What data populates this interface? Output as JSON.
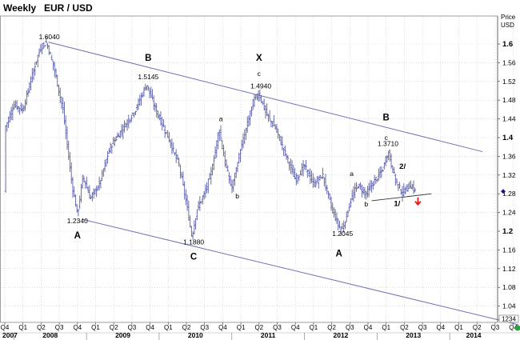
{
  "header": {
    "period": "Weekly",
    "symbol": "EUR / USD"
  },
  "axis": {
    "price_label_1": "Price",
    "price_label_2": "USD",
    "last_value_box": "1234"
  },
  "colors": {
    "price_bars": "#5b5fa8",
    "channel": "#6f72b5",
    "grid": "#c9c9c9",
    "down_arrow": "#dd1a1a",
    "marker_diamond": "#1a1a8f",
    "marker_dot": "#2aa13a"
  },
  "chart_data": {
    "type": "bar",
    "subtype": "ohlc_weekly",
    "series": [
      {
        "values": []
      }
    ],
    "y_axis_ticks": [
      "1.6",
      "1.56",
      "1.52",
      "1.48",
      "1.44",
      "1.4",
      "1.36",
      "1.32",
      "1.28",
      "1.24",
      "1.2",
      "1.16",
      "1.12",
      "1.08",
      "1.04"
    ],
    "y_axis_bold": [
      "1.6",
      "1.4",
      "1.2"
    ],
    "ylim": [
      1.0,
      1.63
    ],
    "grid": true,
    "quarter_ticks": [
      "Q4",
      "Q1",
      "Q2",
      "Q3",
      "Q4",
      "Q1",
      "Q2",
      "Q3",
      "Q4",
      "Q1",
      "Q2",
      "Q3",
      "Q4",
      "Q1",
      "Q2",
      "Q3",
      "Q4",
      "Q1",
      "Q2",
      "Q3",
      "Q4",
      "Q1",
      "Q2",
      "Q3",
      "Q4",
      "Q1",
      "Q2",
      "Q3",
      "Q4"
    ],
    "years": [
      "2007",
      "2008",
      "2009",
      "2010",
      "2011",
      "2012",
      "2013",
      "2014"
    ],
    "price_path": [
      {
        "t": 0.0,
        "p": 1.42
      },
      {
        "t": 0.5,
        "p": 1.47
      },
      {
        "t": 1.0,
        "p": 1.46
      },
      {
        "t": 1.7,
        "p": 1.56
      },
      {
        "t": 2.0,
        "p": 1.595
      },
      {
        "t": 2.3,
        "p": 1.604
      },
      {
        "t": 2.7,
        "p": 1.55
      },
      {
        "t": 3.2,
        "p": 1.46
      },
      {
        "t": 3.7,
        "p": 1.3
      },
      {
        "t": 4.0,
        "p": 1.234
      },
      {
        "t": 4.3,
        "p": 1.32
      },
      {
        "t": 4.7,
        "p": 1.27
      },
      {
        "t": 5.2,
        "p": 1.3
      },
      {
        "t": 5.8,
        "p": 1.38
      },
      {
        "t": 6.5,
        "p": 1.42
      },
      {
        "t": 7.2,
        "p": 1.46
      },
      {
        "t": 7.8,
        "p": 1.5145
      },
      {
        "t": 8.3,
        "p": 1.46
      },
      {
        "t": 9.0,
        "p": 1.4
      },
      {
        "t": 9.6,
        "p": 1.34
      },
      {
        "t": 10.0,
        "p": 1.26
      },
      {
        "t": 10.3,
        "p": 1.188
      },
      {
        "t": 10.6,
        "p": 1.25
      },
      {
        "t": 11.0,
        "p": 1.28
      },
      {
        "t": 11.4,
        "p": 1.33
      },
      {
        "t": 11.8,
        "p": 1.42
      },
      {
        "t": 12.1,
        "p": 1.35
      },
      {
        "t": 12.5,
        "p": 1.29
      },
      {
        "t": 12.9,
        "p": 1.36
      },
      {
        "t": 13.3,
        "p": 1.42
      },
      {
        "t": 13.7,
        "p": 1.48
      },
      {
        "t": 14.0,
        "p": 1.494
      },
      {
        "t": 14.4,
        "p": 1.45
      },
      {
        "t": 14.9,
        "p": 1.42
      },
      {
        "t": 15.4,
        "p": 1.37
      },
      {
        "t": 16.0,
        "p": 1.31
      },
      {
        "t": 16.5,
        "p": 1.34
      },
      {
        "t": 17.0,
        "p": 1.3
      },
      {
        "t": 17.5,
        "p": 1.32
      },
      {
        "t": 18.0,
        "p": 1.25
      },
      {
        "t": 18.4,
        "p": 1.21
      },
      {
        "t": 18.6,
        "p": 1.2045
      },
      {
        "t": 19.0,
        "p": 1.26
      },
      {
        "t": 19.4,
        "p": 1.3
      },
      {
        "t": 19.9,
        "p": 1.28
      },
      {
        "t": 20.4,
        "p": 1.31
      },
      {
        "t": 20.8,
        "p": 1.33
      },
      {
        "t": 21.1,
        "p": 1.371
      },
      {
        "t": 21.5,
        "p": 1.31
      },
      {
        "t": 21.9,
        "p": 1.28
      },
      {
        "t": 22.3,
        "p": 1.3
      },
      {
        "t": 22.6,
        "p": 1.285
      }
    ],
    "channel_upper": [
      {
        "t": 2.4,
        "p": 1.604
      },
      {
        "t": 26.3,
        "p": 1.37
      }
    ],
    "channel_lower": [
      {
        "t": 4.3,
        "p": 1.225
      },
      {
        "t": 28.3,
        "p": 1.0
      }
    ],
    "support_line": [
      {
        "t": 20.2,
        "p": 1.265
      },
      {
        "t": 23.5,
        "p": 1.28
      }
    ],
    "annotations": [
      {
        "text": "1.6040",
        "t": 2.45,
        "p": 1.61,
        "kind": "price"
      },
      {
        "text": "1.2340",
        "t": 4.0,
        "p": 1.217,
        "kind": "price"
      },
      {
        "text": "1.5145",
        "t": 7.9,
        "p": 1.525,
        "kind": "price"
      },
      {
        "text": "1.1880",
        "t": 10.4,
        "p": 1.172,
        "kind": "price"
      },
      {
        "text": "1.4940",
        "t": 14.1,
        "p": 1.505,
        "kind": "price"
      },
      {
        "text": "1.2045",
        "t": 18.6,
        "p": 1.19,
        "kind": "price"
      },
      {
        "text": "1.3710",
        "t": 21.1,
        "p": 1.382,
        "kind": "price"
      },
      {
        "text": "A",
        "t": 4.0,
        "p": 1.185,
        "kind": "wave"
      },
      {
        "text": "B",
        "t": 7.9,
        "p": 1.564,
        "kind": "wave"
      },
      {
        "text": "C",
        "t": 10.4,
        "p": 1.139,
        "kind": "wave"
      },
      {
        "text": "X",
        "t": 14.0,
        "p": 1.564,
        "kind": "wave"
      },
      {
        "text": "A",
        "t": 18.4,
        "p": 1.146,
        "kind": "wave"
      },
      {
        "text": "B",
        "t": 21.0,
        "p": 1.437,
        "kind": "wave"
      },
      {
        "text": "c",
        "t": 14.0,
        "p": 1.532,
        "kind": "sub"
      },
      {
        "text": "a",
        "t": 11.9,
        "p": 1.435,
        "kind": "sub"
      },
      {
        "text": "b",
        "t": 12.8,
        "p": 1.27,
        "kind": "sub"
      },
      {
        "text": "a",
        "t": 19.1,
        "p": 1.318,
        "kind": "sub"
      },
      {
        "text": "b",
        "t": 19.9,
        "p": 1.253,
        "kind": "sub"
      },
      {
        "text": "c",
        "t": 21.0,
        "p": 1.395,
        "kind": "sub"
      },
      {
        "text": "2/",
        "t": 21.9,
        "p": 1.333,
        "kind": "wave_small"
      },
      {
        "text": "1/",
        "t": 21.6,
        "p": 1.254,
        "kind": "wave_small"
      }
    ]
  }
}
